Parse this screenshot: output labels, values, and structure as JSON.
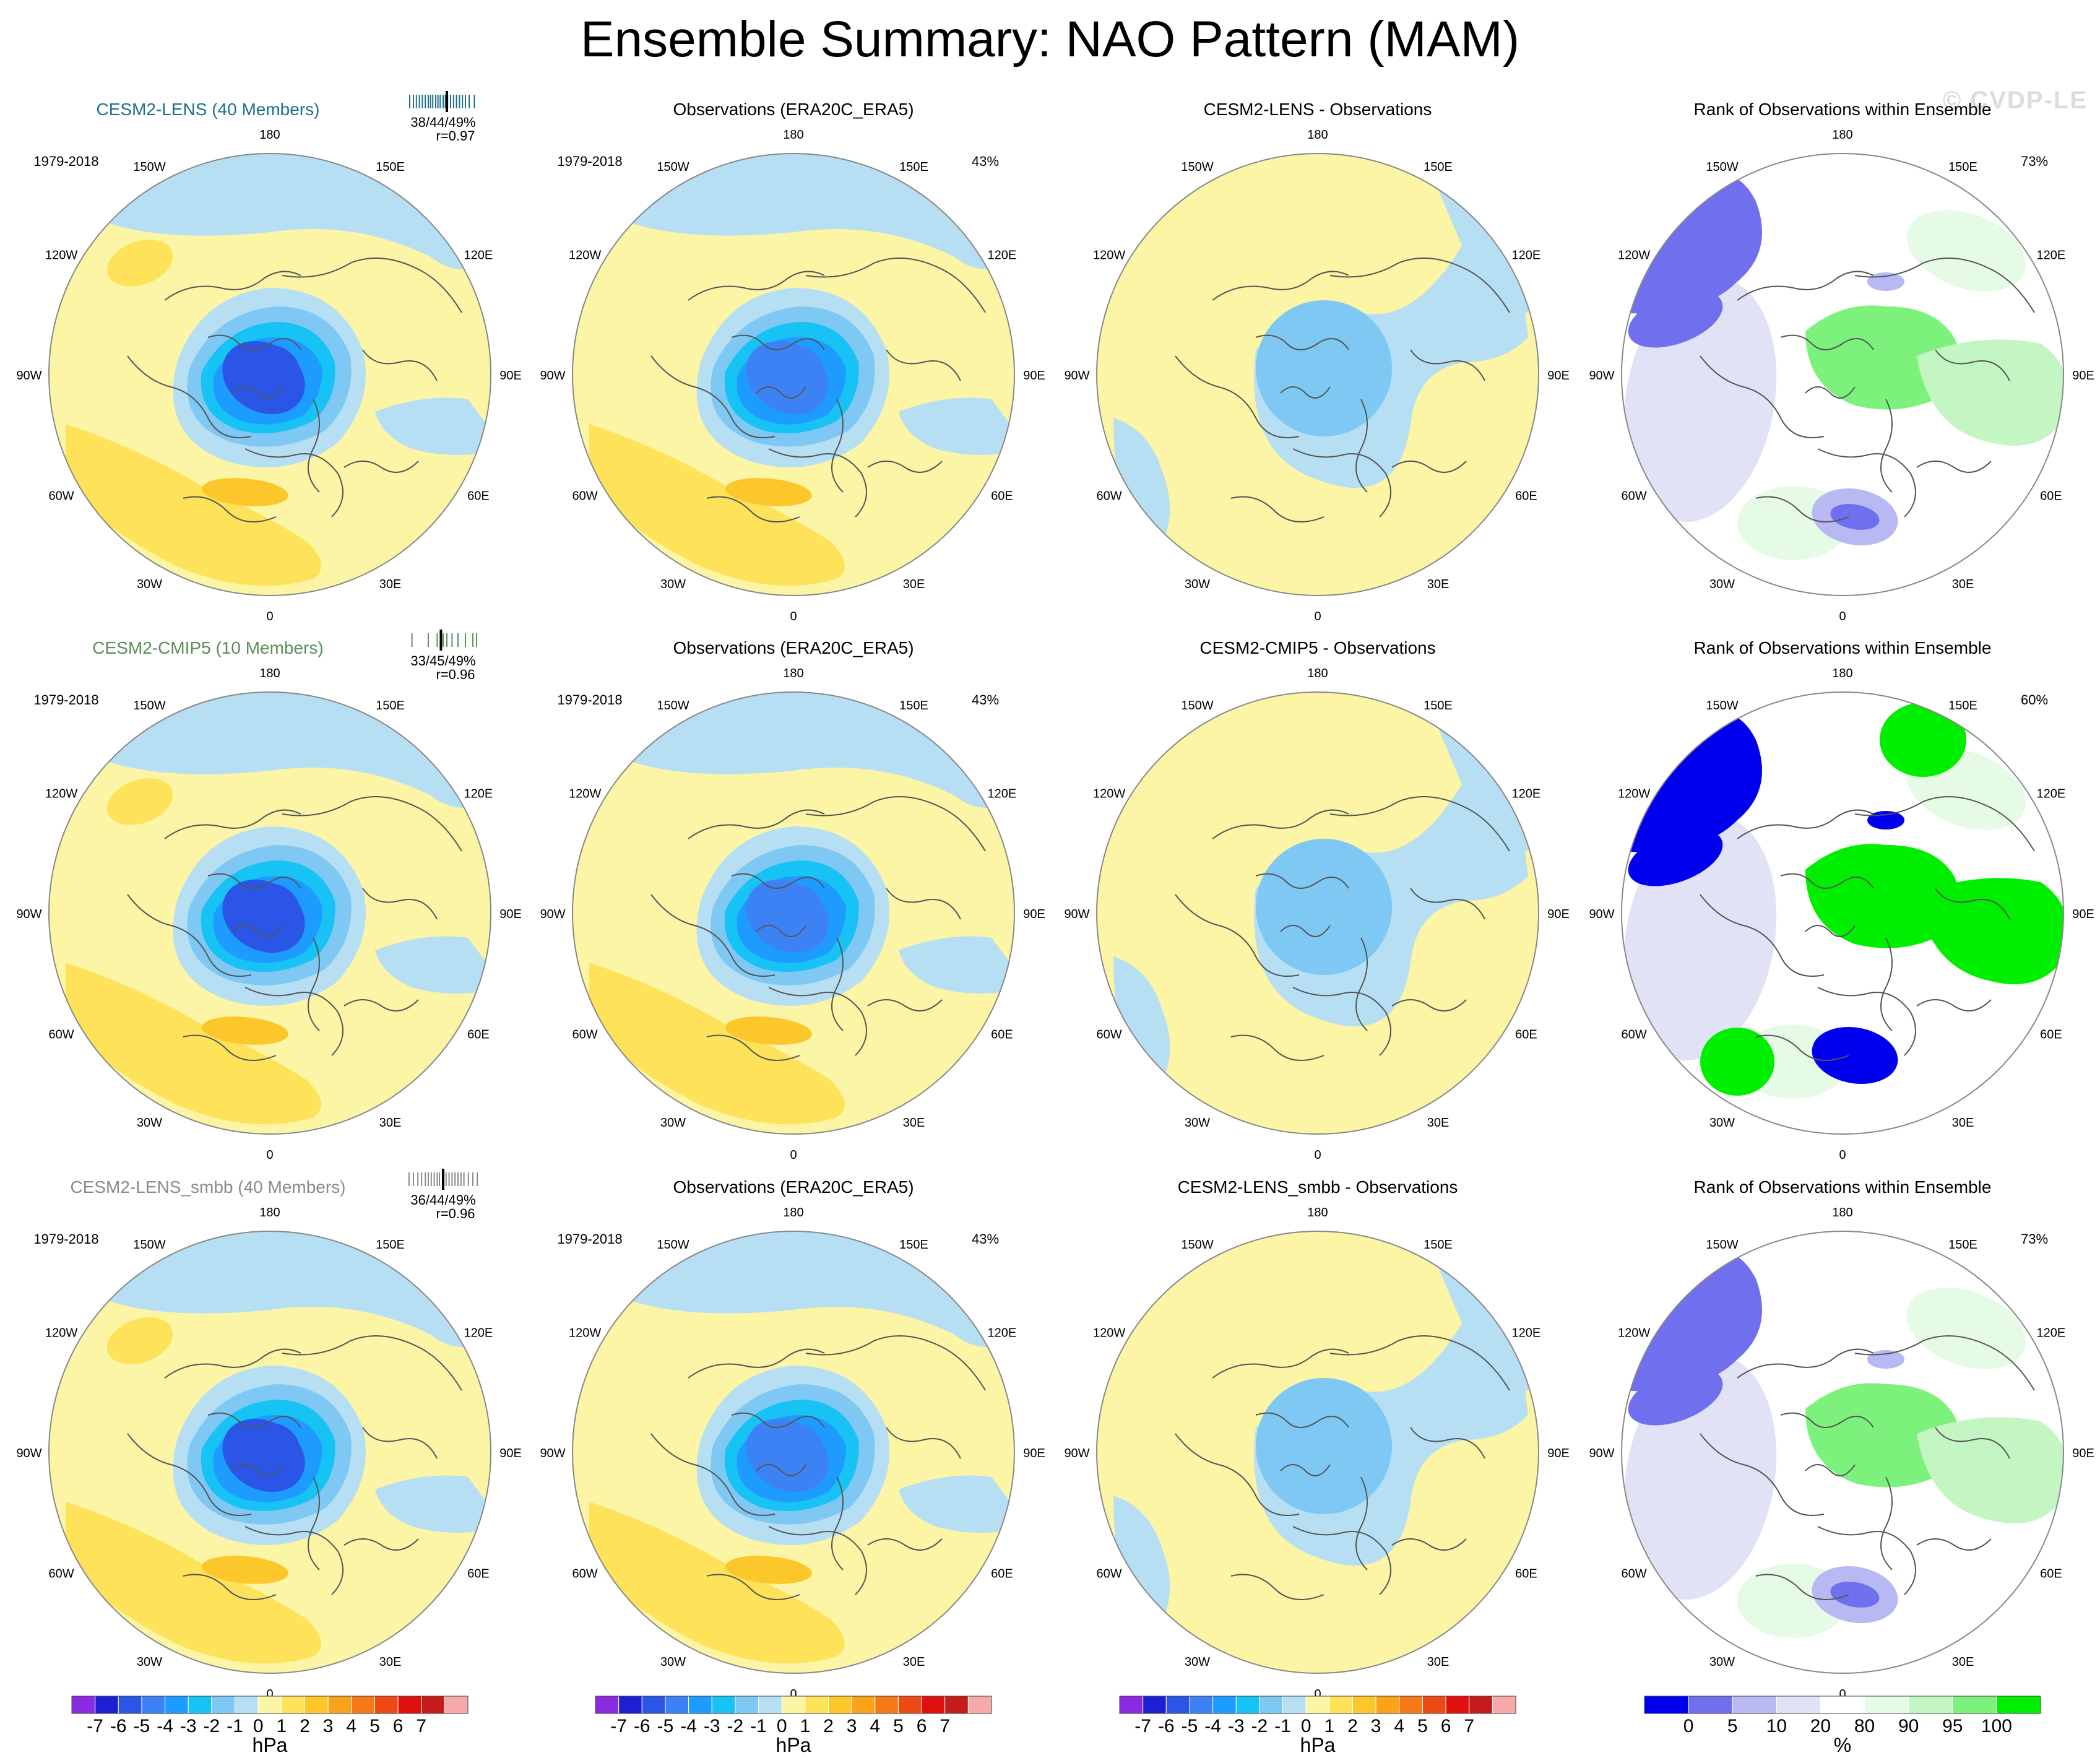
{
  "title": "Ensemble Summary: NAO Pattern (MAM)",
  "watermark": "© CVDP-LE",
  "units": {
    "hpa": "hPa",
    "pct": "%"
  },
  "longitude_labels": [
    "180",
    "150E",
    "120E",
    "90E",
    "60E",
    "30E",
    "0",
    "30W",
    "60W",
    "90W",
    "120W",
    "150W"
  ],
  "colors": {
    "land_ocean_outline": "#555555",
    "pattern_scale": [
      "#8a2be2",
      "#1e1ed2",
      "#2a55e6",
      "#3d82f5",
      "#1e9bff",
      "#17c2f5",
      "#7ec8f3",
      "#b6dff4",
      "#fbf5a5",
      "#fde25a",
      "#fbc72a",
      "#f9a31a",
      "#f57a17",
      "#ee4a15",
      "#e01010",
      "#c41b1b",
      "#f7a8a8"
    ],
    "rank_scale": [
      "#0000ee",
      "#7070ee",
      "#b8b8f2",
      "#e2e2f7",
      "#ffffff",
      "#e6fbe6",
      "#c4f6c4",
      "#7cf27c",
      "#00ee00"
    ]
  },
  "chart_data": [
    {
      "type": "heatmap",
      "row": 1,
      "model": "CESM2-LENS (40 Members)",
      "model_color": "#1f6f8b",
      "period": "1979-2018",
      "stats": "38/44/49%",
      "pattern_corr": "r=0.97",
      "member_ticks": [
        0.05,
        0.1,
        0.14,
        0.18,
        0.22,
        0.26,
        0.3,
        0.33,
        0.36,
        0.4,
        0.43,
        0.46,
        0.5,
        0.53,
        0.56,
        0.6,
        0.64,
        0.68,
        0.72,
        0.76,
        0.8,
        0.85,
        0.92
      ],
      "obs_tick": 0.55,
      "panels": [
        {
          "kind": "ensemble",
          "title": "CESM2-LENS (40 Members)",
          "label": "",
          "min_hpa": -6,
          "max_hpa": 4
        },
        {
          "kind": "observation",
          "title": "Observations (ERA20C_ERA5)",
          "label": "43%",
          "min_hpa": -5,
          "max_hpa": 3
        },
        {
          "kind": "difference",
          "title": "CESM2-LENS - Observations",
          "label": "",
          "min_hpa": -1,
          "max_hpa": 1
        },
        {
          "kind": "rank",
          "title": "Rank of Observations within Ensemble",
          "label": "73%"
        }
      ]
    },
    {
      "type": "heatmap",
      "row": 2,
      "model": "CESM2-CMIP5 (10 Members)",
      "model_color": "#5b8c5a",
      "period": "1979-2018",
      "stats": "33/45/49%",
      "pattern_corr": "r=0.96",
      "member_ticks": [
        0.08,
        0.3,
        0.42,
        0.5,
        0.55,
        0.62,
        0.7,
        0.8,
        0.9,
        0.95
      ],
      "obs_tick": 0.47,
      "panels": [
        {
          "kind": "ensemble",
          "title": "CESM2-CMIP5 (10 Members)",
          "label": "",
          "min_hpa": -6,
          "max_hpa": 4
        },
        {
          "kind": "observation",
          "title": "Observations (ERA20C_ERA5)",
          "label": "43%",
          "min_hpa": -5,
          "max_hpa": 3
        },
        {
          "kind": "difference",
          "title": "CESM2-CMIP5 - Observations",
          "label": "",
          "min_hpa": -1,
          "max_hpa": 1
        },
        {
          "kind": "rank",
          "title": "Rank of Observations within Ensemble",
          "label": "60%"
        }
      ]
    },
    {
      "type": "heatmap",
      "row": 3,
      "model": "CESM2-LENS_smbb (40 Members)",
      "model_color": "#8a8a8a",
      "period": "1979-2018",
      "stats": "36/44/49%",
      "pattern_corr": "r=0.96",
      "member_ticks": [
        0.04,
        0.1,
        0.16,
        0.21,
        0.26,
        0.3,
        0.34,
        0.38,
        0.42,
        0.45,
        0.5,
        0.54,
        0.58,
        0.62,
        0.66,
        0.7,
        0.74,
        0.78,
        0.84,
        0.9,
        0.96
      ],
      "obs_tick": 0.5,
      "panels": [
        {
          "kind": "ensemble",
          "title": "CESM2-LENS_smbb (40 Members)",
          "label": "",
          "min_hpa": -6,
          "max_hpa": 4
        },
        {
          "kind": "observation",
          "title": "Observations (ERA20C_ERA5)",
          "label": "43%",
          "min_hpa": -5,
          "max_hpa": 3
        },
        {
          "kind": "difference",
          "title": "CESM2-LENS_smbb - Observations",
          "label": "",
          "min_hpa": -1,
          "max_hpa": 1
        },
        {
          "kind": "rank",
          "title": "Rank of Observations within Ensemble",
          "label": "73%"
        }
      ]
    }
  ],
  "colorbars": [
    {
      "column": 1,
      "ticks": [
        "-7",
        "-6",
        "-5",
        "-4",
        "-3",
        "-2",
        "-1",
        "0",
        "1",
        "2",
        "3",
        "4",
        "5",
        "6",
        "7"
      ],
      "unit": "hPa"
    },
    {
      "column": 2,
      "ticks": [
        "-7",
        "-6",
        "-5",
        "-4",
        "-3",
        "-2",
        "-1",
        "0",
        "1",
        "2",
        "3",
        "4",
        "5",
        "6",
        "7"
      ],
      "unit": "hPa"
    },
    {
      "column": 3,
      "ticks": [
        "-7",
        "-6",
        "-5",
        "-4",
        "-3",
        "-2",
        "-1",
        "0",
        "1",
        "2",
        "3",
        "4",
        "5",
        "6",
        "7"
      ],
      "unit": "hPa"
    },
    {
      "column": 4,
      "ticks": [
        "0",
        "5",
        "10",
        "20",
        "80",
        "90",
        "95",
        "100"
      ],
      "unit": "%"
    }
  ]
}
